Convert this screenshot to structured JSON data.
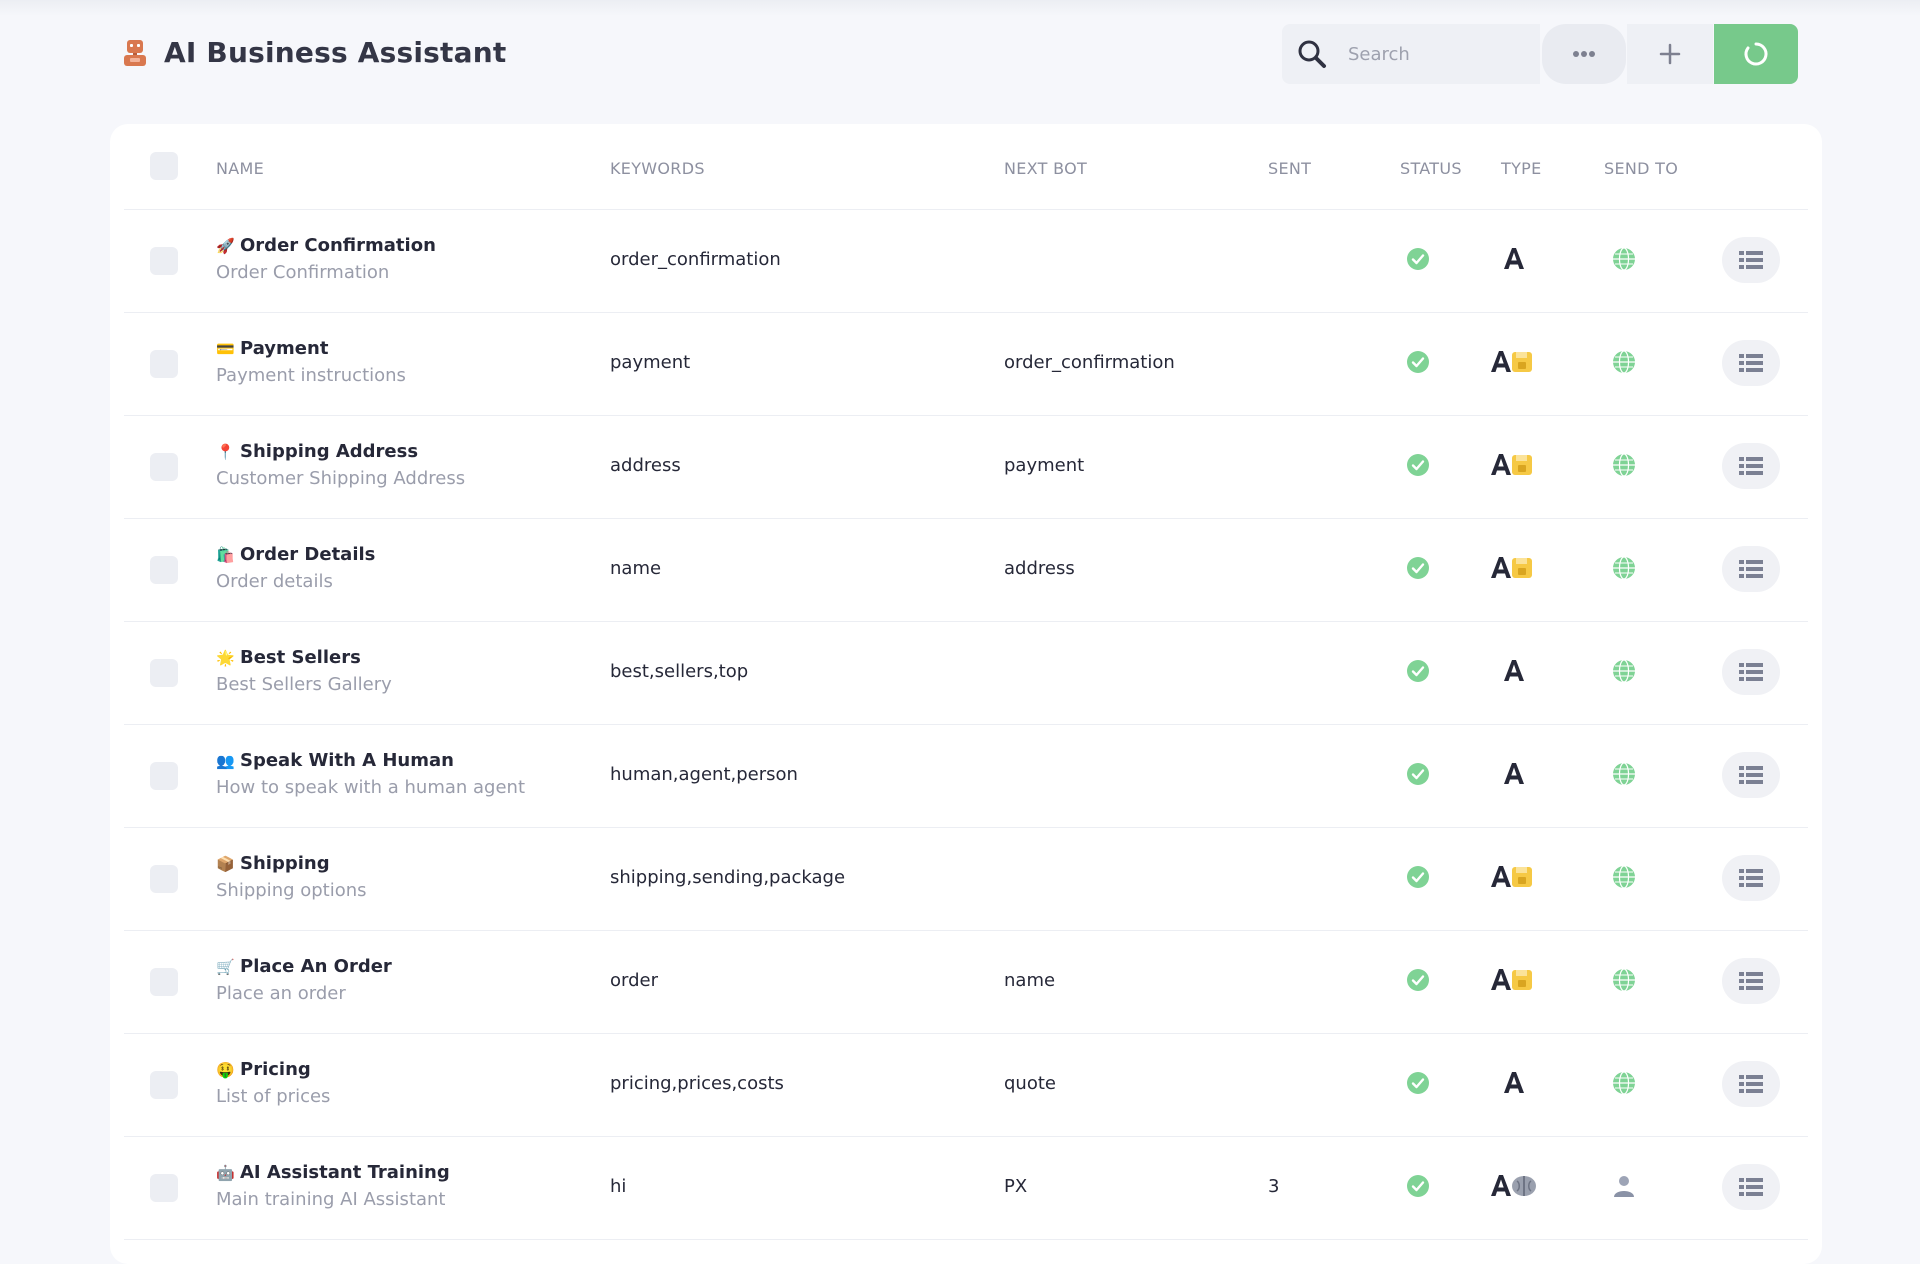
{
  "app": {
    "title": "AI Business Assistant"
  },
  "search": {
    "placeholder": "Search"
  },
  "toolbar": {
    "more_icon": "more-dots-icon",
    "add_icon": "plus-icon",
    "refresh_icon": "refresh-icon"
  },
  "colors": {
    "accent_green": "#77c98b",
    "status_green": "#7fd395",
    "type_gold": "#f6c945",
    "bot_brand": "#d9784f"
  },
  "table": {
    "columns": {
      "name": "NAME",
      "keywords": "KEYWORDS",
      "next_bot": "NEXT BOT",
      "sent": "SENT",
      "status": "STATUS",
      "type": "TYPE",
      "send_to": "SEND TO"
    },
    "rows": [
      {
        "emoji": "🚀",
        "name": "Order Confirmation",
        "description": "Order Confirmation",
        "keywords": "order_confirmation",
        "next_bot": "",
        "sent": "",
        "status": "active",
        "type": "text",
        "send_to": "everyone"
      },
      {
        "emoji": "💳",
        "name": "Payment",
        "description": "Payment instructions",
        "keywords": "payment",
        "next_bot": "order_confirmation",
        "sent": "",
        "status": "active",
        "type": "text-save",
        "send_to": "everyone"
      },
      {
        "emoji": "📍",
        "name": "Shipping Address",
        "description": "Customer Shipping Address",
        "keywords": "address",
        "next_bot": "payment",
        "sent": "",
        "status": "active",
        "type": "text-save",
        "send_to": "everyone"
      },
      {
        "emoji": "🛍️",
        "name": "Order Details",
        "description": "Order details",
        "keywords": "name",
        "next_bot": "address",
        "sent": "",
        "status": "active",
        "type": "text-save",
        "send_to": "everyone"
      },
      {
        "emoji": "🌟",
        "name": "Best Sellers",
        "description": "Best Sellers Gallery",
        "keywords": "best,sellers,top",
        "next_bot": "",
        "sent": "",
        "status": "active",
        "type": "text",
        "send_to": "everyone"
      },
      {
        "emoji": "👥",
        "name": "Speak With A Human",
        "description": "How to speak with a human agent",
        "keywords": "human,agent,person",
        "next_bot": "",
        "sent": "",
        "status": "active",
        "type": "text",
        "send_to": "everyone"
      },
      {
        "emoji": "📦",
        "name": "Shipping",
        "description": "Shipping options",
        "keywords": "shipping,sending,package",
        "next_bot": "",
        "sent": "",
        "status": "active",
        "type": "text-save",
        "send_to": "everyone"
      },
      {
        "emoji": "🛒",
        "name": "Place An Order",
        "description": "Place an order",
        "keywords": "order",
        "next_bot": "name",
        "sent": "",
        "status": "active",
        "type": "text-save",
        "send_to": "everyone"
      },
      {
        "emoji": "🤑",
        "name": "Pricing",
        "description": "List of prices",
        "keywords": "pricing,prices,costs",
        "next_bot": "quote",
        "sent": "",
        "status": "active",
        "type": "text",
        "send_to": "everyone"
      },
      {
        "emoji": "🤖",
        "name": "AI Assistant Training",
        "description": "Main training AI Assistant",
        "keywords": "hi",
        "next_bot": "PX",
        "sent": "3",
        "status": "active",
        "type": "text-ai",
        "send_to": "user"
      }
    ]
  }
}
